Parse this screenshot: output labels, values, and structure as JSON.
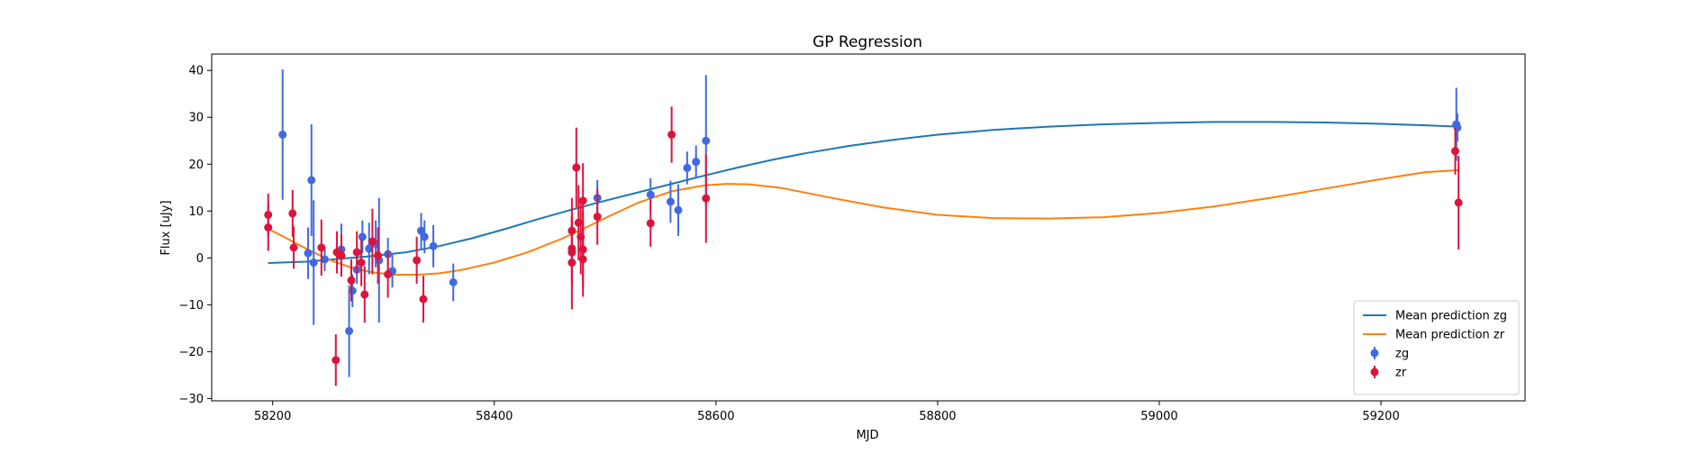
{
  "chart_data": {
    "type": "scatter",
    "title": "GP Regression",
    "xlabel": "MJD",
    "ylabel": "Flux [uJy]",
    "xlim": [
      58145,
      59330
    ],
    "ylim": [
      -30.5,
      43.5
    ],
    "xticks": [
      58200,
      58400,
      58600,
      58800,
      59000,
      59200
    ],
    "yticks": [
      -30,
      -20,
      -10,
      0,
      10,
      20,
      30,
      40
    ],
    "grid": false,
    "legend_position": "bottom-right",
    "series": [
      {
        "name": "Mean prediction zg",
        "kind": "line",
        "color": "#1f77b4",
        "x": [
          58196,
          58230,
          58260,
          58290,
          58320,
          58350,
          58380,
          58410,
          58440,
          58470,
          58500,
          58530,
          58560,
          58590,
          58620,
          58650,
          58680,
          58720,
          58760,
          58800,
          58850,
          58900,
          58950,
          59000,
          59050,
          59100,
          59150,
          59200,
          59240,
          59270
        ],
        "y": [
          -1.1,
          -0.8,
          -0.2,
          0.4,
          1.2,
          2.5,
          4.2,
          6.2,
          8.3,
          10.3,
          12.2,
          14.0,
          15.8,
          17.6,
          19.3,
          20.9,
          22.3,
          23.9,
          25.2,
          26.3,
          27.3,
          28.0,
          28.5,
          28.8,
          29.0,
          29.0,
          28.9,
          28.6,
          28.3,
          28.0
        ]
      },
      {
        "name": "Mean prediction zr",
        "kind": "line",
        "color": "#ff7f0e",
        "x": [
          58196,
          58210,
          58230,
          58250,
          58270,
          58290,
          58310,
          58330,
          58350,
          58370,
          58400,
          58430,
          58460,
          58480,
          58500,
          58530,
          58560,
          58590,
          58610,
          58630,
          58660,
          58700,
          58750,
          58800,
          58850,
          58900,
          58950,
          59000,
          59050,
          59100,
          59150,
          59200,
          59240,
          59270
        ],
        "y": [
          6.2,
          4.5,
          2.0,
          -0.3,
          -2.0,
          -3.1,
          -3.6,
          -3.6,
          -3.3,
          -2.6,
          -1.0,
          1.2,
          4.0,
          6.2,
          8.5,
          11.8,
          14.2,
          15.5,
          15.8,
          15.7,
          14.9,
          13.0,
          10.8,
          9.2,
          8.5,
          8.4,
          8.7,
          9.6,
          11.0,
          12.8,
          14.8,
          16.8,
          18.3,
          18.7
        ]
      },
      {
        "name": "zg",
        "kind": "errorbar",
        "color": "#4169e1",
        "points": [
          {
            "x": 58209,
            "y": 26.3,
            "err": 13.9
          },
          {
            "x": 58232,
            "y": 1.0,
            "err": 5.5
          },
          {
            "x": 58235,
            "y": 16.6,
            "err": 11.9
          },
          {
            "x": 58237,
            "y": -1.0,
            "err": 13.3
          },
          {
            "x": 58247,
            "y": -0.3,
            "err": 2.5
          },
          {
            "x": 58262,
            "y": 1.8,
            "err": 5.5
          },
          {
            "x": 58269,
            "y": -15.6,
            "err": 9.8
          },
          {
            "x": 58272,
            "y": -7.0,
            "err": 3.5
          },
          {
            "x": 58276,
            "y": -2.5,
            "err": 3.0
          },
          {
            "x": 58281,
            "y": 4.5,
            "err": 3.5
          },
          {
            "x": 58287,
            "y": 2.0,
            "err": 5.5
          },
          {
            "x": 58293,
            "y": 3.0,
            "err": 5.0
          },
          {
            "x": 58296,
            "y": -0.5,
            "err": 13.3
          },
          {
            "x": 58304,
            "y": 0.8,
            "err": 3.5
          },
          {
            "x": 58308,
            "y": -2.8,
            "err": 3.5
          },
          {
            "x": 58334,
            "y": 5.8,
            "err": 3.8
          },
          {
            "x": 58337,
            "y": 4.5,
            "err": 3.5
          },
          {
            "x": 58345,
            "y": 2.5,
            "err": 4.5
          },
          {
            "x": 58363,
            "y": -5.2,
            "err": 4.0
          },
          {
            "x": 58541,
            "y": 13.5,
            "err": 3.5
          },
          {
            "x": 58559,
            "y": 12.0,
            "err": 4.5
          },
          {
            "x": 58566,
            "y": 10.2,
            "err": 5.5
          },
          {
            "x": 58574,
            "y": 19.2,
            "err": 3.5
          },
          {
            "x": 58582,
            "y": 20.5,
            "err": 3.5
          },
          {
            "x": 58591,
            "y": 25.0,
            "err": 14.0
          },
          {
            "x": 59268,
            "y": 28.5,
            "err": 7.8
          },
          {
            "x": 59269,
            "y": 27.8,
            "err": 3.0
          },
          {
            "x": 58493,
            "y": 12.8,
            "err": 3.8
          }
        ]
      },
      {
        "name": "zr",
        "kind": "errorbar",
        "color": "#dc143c",
        "points": [
          {
            "x": 58196,
            "y": 9.2,
            "err": 4.5
          },
          {
            "x": 58196,
            "y": 6.5,
            "err": 5.0
          },
          {
            "x": 58218,
            "y": 9.5,
            "err": 5.0
          },
          {
            "x": 58219,
            "y": 2.2,
            "err": 4.5
          },
          {
            "x": 58244,
            "y": 2.2,
            "err": 6.0
          },
          {
            "x": 58257,
            "y": -21.8,
            "err": 5.5
          },
          {
            "x": 58258,
            "y": 1.2,
            "err": 4.5
          },
          {
            "x": 58262,
            "y": 0.5,
            "err": 4.5
          },
          {
            "x": 58271,
            "y": -4.8,
            "err": 4.5
          },
          {
            "x": 58276,
            "y": 1.2,
            "err": 4.5
          },
          {
            "x": 58280,
            "y": -1.0,
            "err": 5.0
          },
          {
            "x": 58283,
            "y": -7.8,
            "err": 6.0
          },
          {
            "x": 58290,
            "y": 3.5,
            "err": 7.0
          },
          {
            "x": 58295,
            "y": 0.5,
            "err": 6.0
          },
          {
            "x": 58304,
            "y": -3.5,
            "err": 5.0
          },
          {
            "x": 58330,
            "y": -0.5,
            "err": 5.0
          },
          {
            "x": 58336,
            "y": -8.8,
            "err": 5.0
          },
          {
            "x": 58470,
            "y": 5.8,
            "err": 7.0
          },
          {
            "x": 58470,
            "y": 2.0,
            "err": 7.0
          },
          {
            "x": 58470,
            "y": 1.2,
            "err": 7.0
          },
          {
            "x": 58470,
            "y": -1.0,
            "err": 10.0
          },
          {
            "x": 58474,
            "y": 19.3,
            "err": 8.5
          },
          {
            "x": 58476,
            "y": 7.5,
            "err": 8.0
          },
          {
            "x": 58478,
            "y": 4.5,
            "err": 8.0
          },
          {
            "x": 58480,
            "y": 12.2,
            "err": 8.0
          },
          {
            "x": 58480,
            "y": 1.8,
            "err": 8.0
          },
          {
            "x": 58480,
            "y": -0.3,
            "err": 8.0
          },
          {
            "x": 58493,
            "y": 8.8,
            "err": 6.0
          },
          {
            "x": 58541,
            "y": 7.4,
            "err": 5.0
          },
          {
            "x": 58560,
            "y": 26.3,
            "err": 6.0
          },
          {
            "x": 58591,
            "y": 12.7,
            "err": 9.5
          },
          {
            "x": 59267,
            "y": 22.8,
            "err": 5.0
          },
          {
            "x": 59270,
            "y": 11.8,
            "err": 10.0
          }
        ]
      }
    ]
  }
}
